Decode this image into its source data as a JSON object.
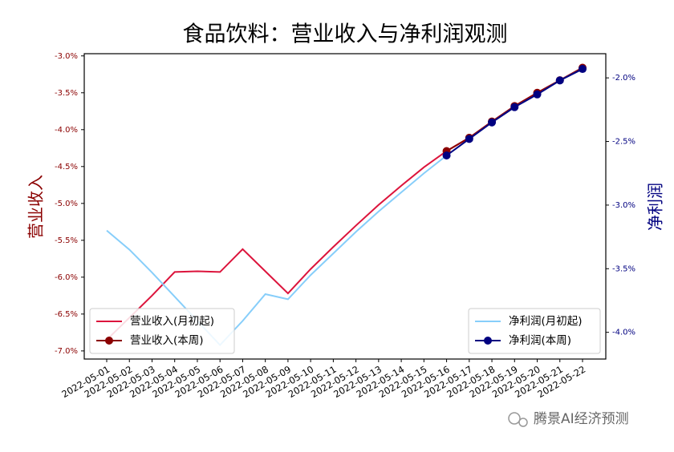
{
  "chart_data": {
    "type": "line",
    "title": "食品饮料：营业收入与净利润观测",
    "ylabel": "营业收入",
    "y2label": "净利润",
    "watermark": "腾景AI经济预测",
    "categories": [
      "2022-05-01",
      "2022-05-02",
      "2022-05-03",
      "2022-05-04",
      "2022-05-05",
      "2022-05-06",
      "2022-05-07",
      "2022-05-08",
      "2022-05-09",
      "2022-05-10",
      "2022-05-11",
      "2022-05-12",
      "2022-05-13",
      "2022-05-14",
      "2022-05-15",
      "2022-05-16",
      "2022-05-17",
      "2022-05-18",
      "2022-05-19",
      "2022-05-20",
      "2022-05-21",
      "2022-05-22"
    ],
    "series": [
      {
        "name": "营业收入(月初起)",
        "color": "#dc143c",
        "axis": "y",
        "marker": false,
        "values": [
          -6.85,
          -6.55,
          -6.25,
          -5.93,
          -5.92,
          -5.93,
          -5.62,
          -5.92,
          -6.22,
          -5.89,
          -5.59,
          -5.3,
          -5.02,
          -4.76,
          -4.51,
          -4.29,
          -4.11,
          -3.89,
          -3.68,
          -3.5,
          -3.33,
          -3.16
        ]
      },
      {
        "name": "营业收入(本周)",
        "color": "#8b0000",
        "axis": "y",
        "marker": true,
        "values": [
          null,
          null,
          null,
          null,
          null,
          null,
          null,
          null,
          null,
          null,
          null,
          null,
          null,
          null,
          null,
          -4.29,
          -4.11,
          -3.89,
          -3.68,
          -3.5,
          -3.33,
          -3.16
        ]
      },
      {
        "name": "净利润(月初起)",
        "color": "#87cefa",
        "axis": "y2",
        "marker": false,
        "values": [
          -3.2,
          -3.35,
          -3.53,
          -3.72,
          -3.91,
          -4.1,
          -3.91,
          -3.7,
          -3.74,
          -3.55,
          -3.38,
          -3.21,
          -3.05,
          -2.9,
          -2.75,
          -2.61,
          -2.48,
          -2.35,
          -2.23,
          -2.13,
          -2.02,
          -1.93
        ]
      },
      {
        "name": "净利润(本周)",
        "color": "#000080",
        "axis": "y2",
        "marker": true,
        "values": [
          null,
          null,
          null,
          null,
          null,
          null,
          null,
          null,
          null,
          null,
          null,
          null,
          null,
          null,
          null,
          -2.61,
          -2.48,
          -2.35,
          -2.23,
          -2.13,
          -2.02,
          -1.93
        ]
      }
    ],
    "ylim": [
      -7.11,
      -2.97
    ],
    "yticks": [
      {
        "value": -3.0,
        "label": "-3.0%"
      },
      {
        "value": -3.5,
        "label": "-3.5%"
      },
      {
        "value": -4.0,
        "label": "-4.0%"
      },
      {
        "value": -4.5,
        "label": "-4.5%"
      },
      {
        "value": -5.0,
        "label": "-5.0%"
      },
      {
        "value": -5.5,
        "label": "-5.5%"
      },
      {
        "value": -6.0,
        "label": "-6.0%"
      },
      {
        "value": -6.5,
        "label": "-6.5%"
      },
      {
        "value": -7.0,
        "label": "-7.0%"
      }
    ],
    "y2lim": [
      -4.21,
      -1.81
    ],
    "y2ticks": [
      {
        "value": -2.0,
        "label": "-2.0%"
      },
      {
        "value": -2.5,
        "label": "-2.5%"
      },
      {
        "value": -3.0,
        "label": "-3.0%"
      },
      {
        "value": -3.5,
        "label": "-3.5%"
      },
      {
        "value": -4.0,
        "label": "-4.0%"
      }
    ],
    "ycolor": "#8b0000",
    "y2color": "#000080",
    "legend": {
      "y": "lower left",
      "y2": "lower right"
    },
    "grid": false
  }
}
